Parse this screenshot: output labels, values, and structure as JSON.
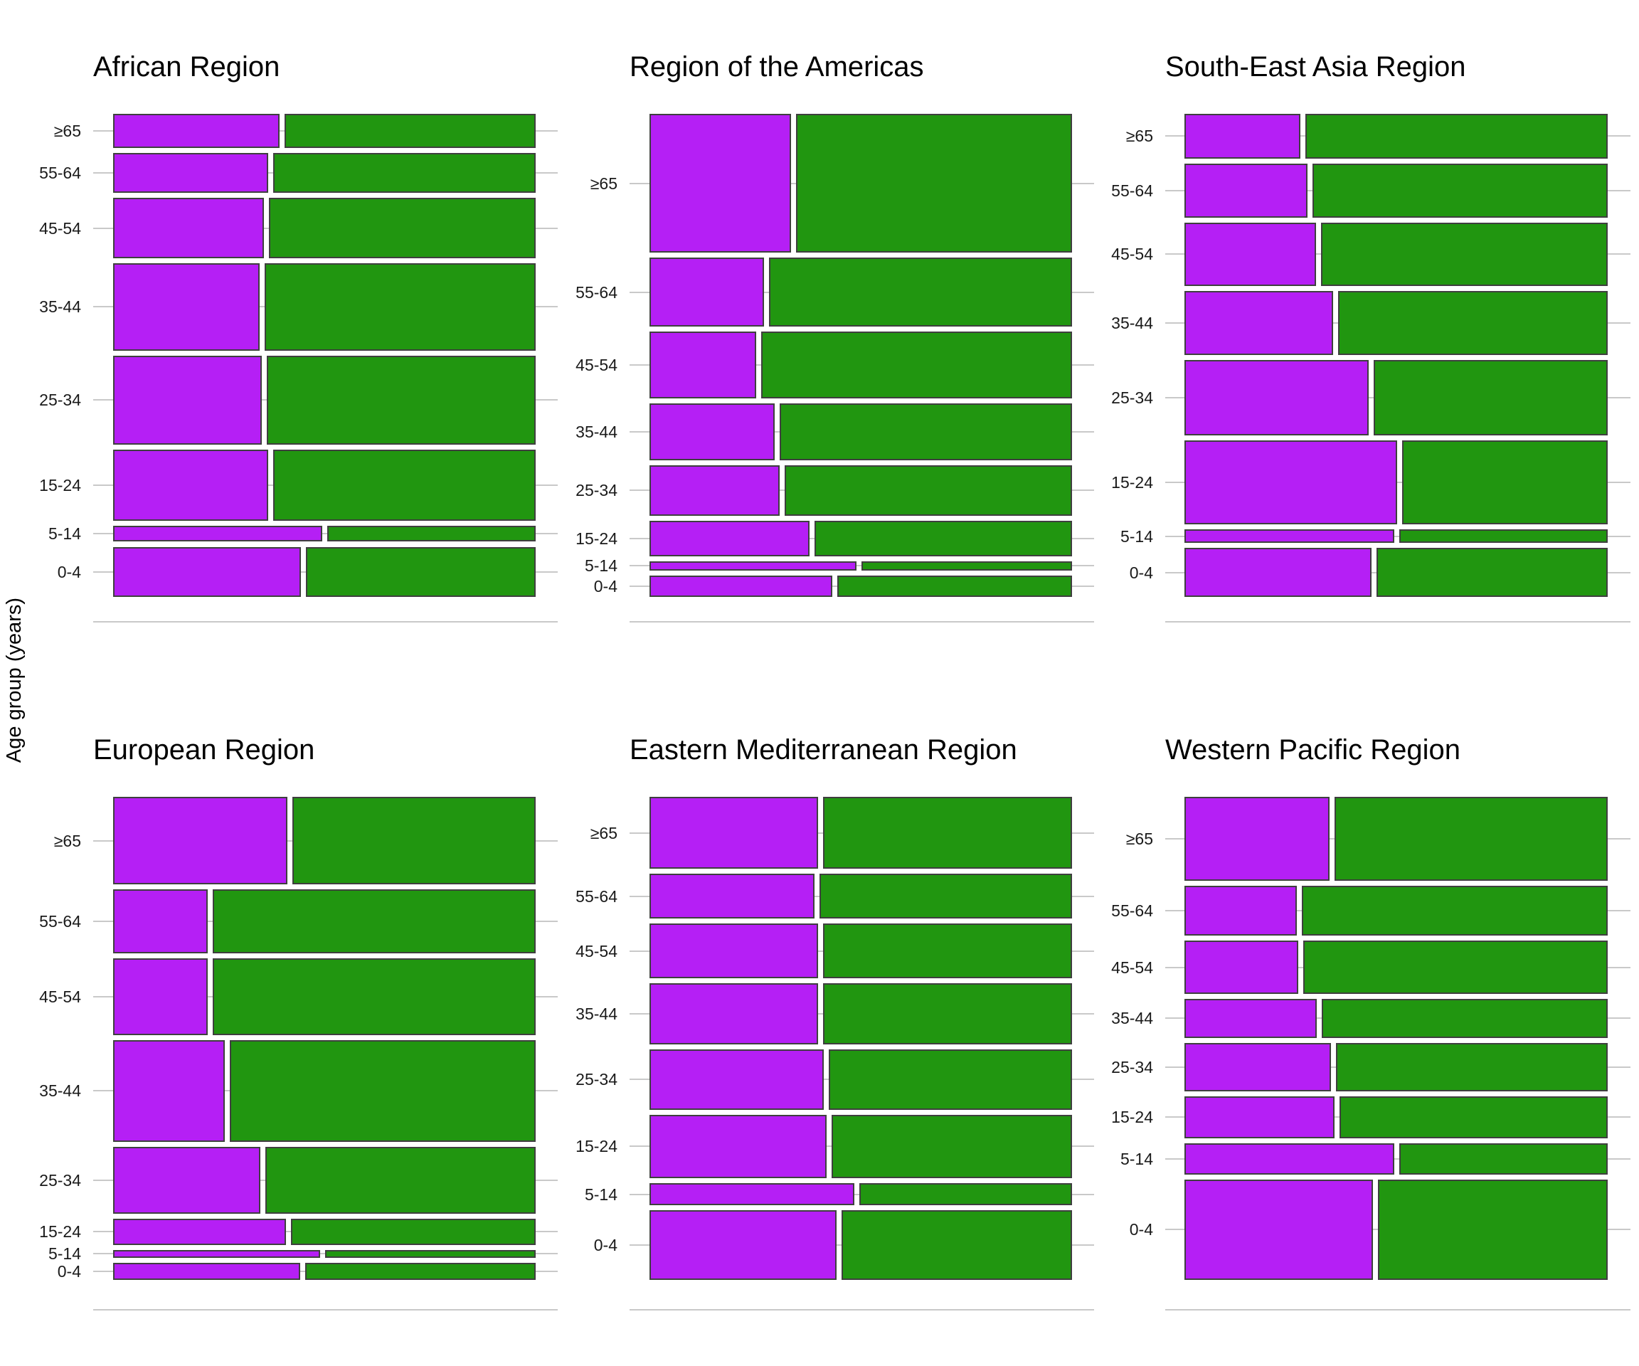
{
  "figure": {
    "y_axis_title": "Age group (years)",
    "colors": {
      "purple": "#B51FF5",
      "green": "#219610",
      "bar_border": "#3F3F3F",
      "gridline": "#C9C9C9",
      "text": "#000000",
      "background": "#FFFFFF"
    }
  },
  "chart_data": {
    "type": "mosaic",
    "title": "",
    "ylabel": "Age group (years)",
    "xlabel": "",
    "legend": "none (two unlabeled series shown as purple and green segments)",
    "age_groups_top_to_bottom": [
      "≥65",
      "55-64",
      "45-54",
      "35-44",
      "25-34",
      "15-24",
      "5-14",
      "0-4"
    ],
    "value_meaning": "row_height_pct = age group share of panel total (bar height); purple_pct = purple segment share of bar width, green is remainder",
    "panels": [
      {
        "title": "African Region",
        "grid_row": 0,
        "grid_col": 0,
        "rows": [
          {
            "age_group": "≥65",
            "row_height_pct": 7.6,
            "purple_pct": 39.8
          },
          {
            "age_group": "55-64",
            "row_height_pct": 8.9,
            "purple_pct": 37.2
          },
          {
            "age_group": "45-54",
            "row_height_pct": 13.6,
            "purple_pct": 36.2
          },
          {
            "age_group": "35-44",
            "row_height_pct": 19.4,
            "purple_pct": 35.1
          },
          {
            "age_group": "25-34",
            "row_height_pct": 20.0,
            "purple_pct": 35.6
          },
          {
            "age_group": "15-24",
            "row_height_pct": 15.9,
            "purple_pct": 37.2
          },
          {
            "age_group": "5-14",
            "row_height_pct": 3.5,
            "purple_pct": 50.0
          },
          {
            "age_group": "0-4",
            "row_height_pct": 11.2,
            "purple_pct": 45.0
          }
        ]
      },
      {
        "title": "Region of the Americas",
        "grid_row": 0,
        "grid_col": 1,
        "rows": [
          {
            "age_group": "≥65",
            "row_height_pct": 31.0,
            "purple_pct": 33.9
          },
          {
            "age_group": "55-64",
            "row_height_pct": 15.4,
            "purple_pct": 27.4
          },
          {
            "age_group": "45-54",
            "row_height_pct": 14.8,
            "purple_pct": 25.5
          },
          {
            "age_group": "35-44",
            "row_height_pct": 12.7,
            "purple_pct": 29.9
          },
          {
            "age_group": "25-34",
            "row_height_pct": 11.4,
            "purple_pct": 31.2
          },
          {
            "age_group": "15-24",
            "row_height_pct": 7.8,
            "purple_pct": 38.4
          },
          {
            "age_group": "5-14",
            "row_height_pct": 2.1,
            "purple_pct": 49.5
          },
          {
            "age_group": "0-4",
            "row_height_pct": 4.8,
            "purple_pct": 43.8
          }
        ]
      },
      {
        "title": "South-East Asia Region",
        "grid_row": 0,
        "grid_col": 2,
        "rows": [
          {
            "age_group": "≥65",
            "row_height_pct": 10.0,
            "purple_pct": 27.7
          },
          {
            "age_group": "55-64",
            "row_height_pct": 12.1,
            "purple_pct": 29.5
          },
          {
            "age_group": "45-54",
            "row_height_pct": 14.1,
            "purple_pct": 31.5
          },
          {
            "age_group": "35-44",
            "row_height_pct": 14.3,
            "purple_pct": 35.5
          },
          {
            "age_group": "25-34",
            "row_height_pct": 16.9,
            "purple_pct": 44.1
          },
          {
            "age_group": "15-24",
            "row_height_pct": 18.8,
            "purple_pct": 50.9
          },
          {
            "age_group": "5-14",
            "row_height_pct": 3.1,
            "purple_pct": 50.2
          },
          {
            "age_group": "0-4",
            "row_height_pct": 10.9,
            "purple_pct": 44.8
          }
        ]
      },
      {
        "title": "European Region",
        "grid_row": 1,
        "grid_col": 0,
        "rows": [
          {
            "age_group": "≥65",
            "row_height_pct": 19.6,
            "purple_pct": 41.8
          },
          {
            "age_group": "55-64",
            "row_height_pct": 14.2,
            "purple_pct": 22.7
          },
          {
            "age_group": "45-54",
            "row_height_pct": 17.1,
            "purple_pct": 22.7
          },
          {
            "age_group": "35-44",
            "row_height_pct": 22.7,
            "purple_pct": 26.7
          },
          {
            "age_group": "25-34",
            "row_height_pct": 15.0,
            "purple_pct": 35.3
          },
          {
            "age_group": "15-24",
            "row_height_pct": 5.8,
            "purple_pct": 41.4
          },
          {
            "age_group": "5-14",
            "row_height_pct": 1.8,
            "purple_pct": 49.5
          },
          {
            "age_group": "0-4",
            "row_height_pct": 3.8,
            "purple_pct": 44.8
          }
        ]
      },
      {
        "title": "Eastern Mediterranean Region",
        "grid_row": 1,
        "grid_col": 1,
        "rows": [
          {
            "age_group": "≥65",
            "row_height_pct": 16.1,
            "purple_pct": 40.3
          },
          {
            "age_group": "55-64",
            "row_height_pct": 10.0,
            "purple_pct": 39.6
          },
          {
            "age_group": "45-54",
            "row_height_pct": 12.2,
            "purple_pct": 40.3
          },
          {
            "age_group": "35-44",
            "row_height_pct": 13.6,
            "purple_pct": 40.3
          },
          {
            "age_group": "25-34",
            "row_height_pct": 13.5,
            "purple_pct": 41.7
          },
          {
            "age_group": "15-24",
            "row_height_pct": 14.1,
            "purple_pct": 42.4
          },
          {
            "age_group": "5-14",
            "row_height_pct": 5.0,
            "purple_pct": 49.0
          },
          {
            "age_group": "0-4",
            "row_height_pct": 15.5,
            "purple_pct": 44.8
          }
        ]
      },
      {
        "title": "Western Pacific Region",
        "grid_row": 1,
        "grid_col": 2,
        "rows": [
          {
            "age_group": "≥65",
            "row_height_pct": 18.7,
            "purple_pct": 34.7
          },
          {
            "age_group": "55-64",
            "row_height_pct": 11.2,
            "purple_pct": 26.9
          },
          {
            "age_group": "45-54",
            "row_height_pct": 11.8,
            "purple_pct": 27.2
          },
          {
            "age_group": "35-44",
            "row_height_pct": 8.8,
            "purple_pct": 31.6
          },
          {
            "age_group": "25-34",
            "row_height_pct": 10.7,
            "purple_pct": 35.1
          },
          {
            "age_group": "15-24",
            "row_height_pct": 9.5,
            "purple_pct": 35.9
          },
          {
            "age_group": "5-14",
            "row_height_pct": 6.9,
            "purple_pct": 50.2
          },
          {
            "age_group": "0-4",
            "row_height_pct": 22.4,
            "purple_pct": 45.0
          }
        ]
      }
    ]
  }
}
